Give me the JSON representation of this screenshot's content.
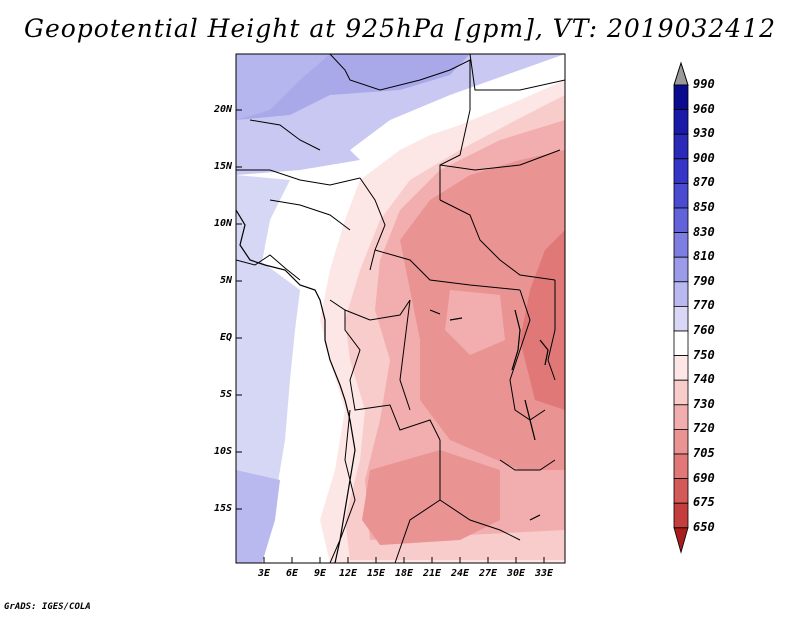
{
  "title": "Geopotential Height at 925hPa [gpm], VT: 2019032412",
  "credit": "GrADS: IGES/COLA",
  "map": {
    "lat_ticks": [
      "20N",
      "15N",
      "10N",
      "5N",
      "EQ",
      "5S",
      "10S",
      "15S"
    ],
    "lon_ticks": [
      "3E",
      "6E",
      "9E",
      "12E",
      "15E",
      "18E",
      "21E",
      "24E",
      "27E",
      "30E",
      "33E"
    ]
  },
  "colorbar": {
    "levels": [
      "990",
      "960",
      "930",
      "900",
      "870",
      "850",
      "830",
      "810",
      "790",
      "770",
      "760",
      "750",
      "740",
      "730",
      "720",
      "705",
      "690",
      "675",
      "650"
    ],
    "colors": [
      "#0b0b8f",
      "#1a1aa8",
      "#2a2ab8",
      "#3535c8",
      "#4b4bd0",
      "#6262d9",
      "#7e7ee2",
      "#9b9bea",
      "#b9b9f0",
      "#d8d8f6",
      "#ffffff",
      "#fde6e6",
      "#f9cccc",
      "#f2aeae",
      "#ea9393",
      "#e07878",
      "#d45a5a",
      "#c43e3e",
      "#a81c1c"
    ]
  },
  "palette": {
    "frame": "#000000",
    "ocean_low": "#d6d6f5",
    "ocean_mid": "#c0c0ee",
    "north_blue": "#a9a9e9"
  }
}
